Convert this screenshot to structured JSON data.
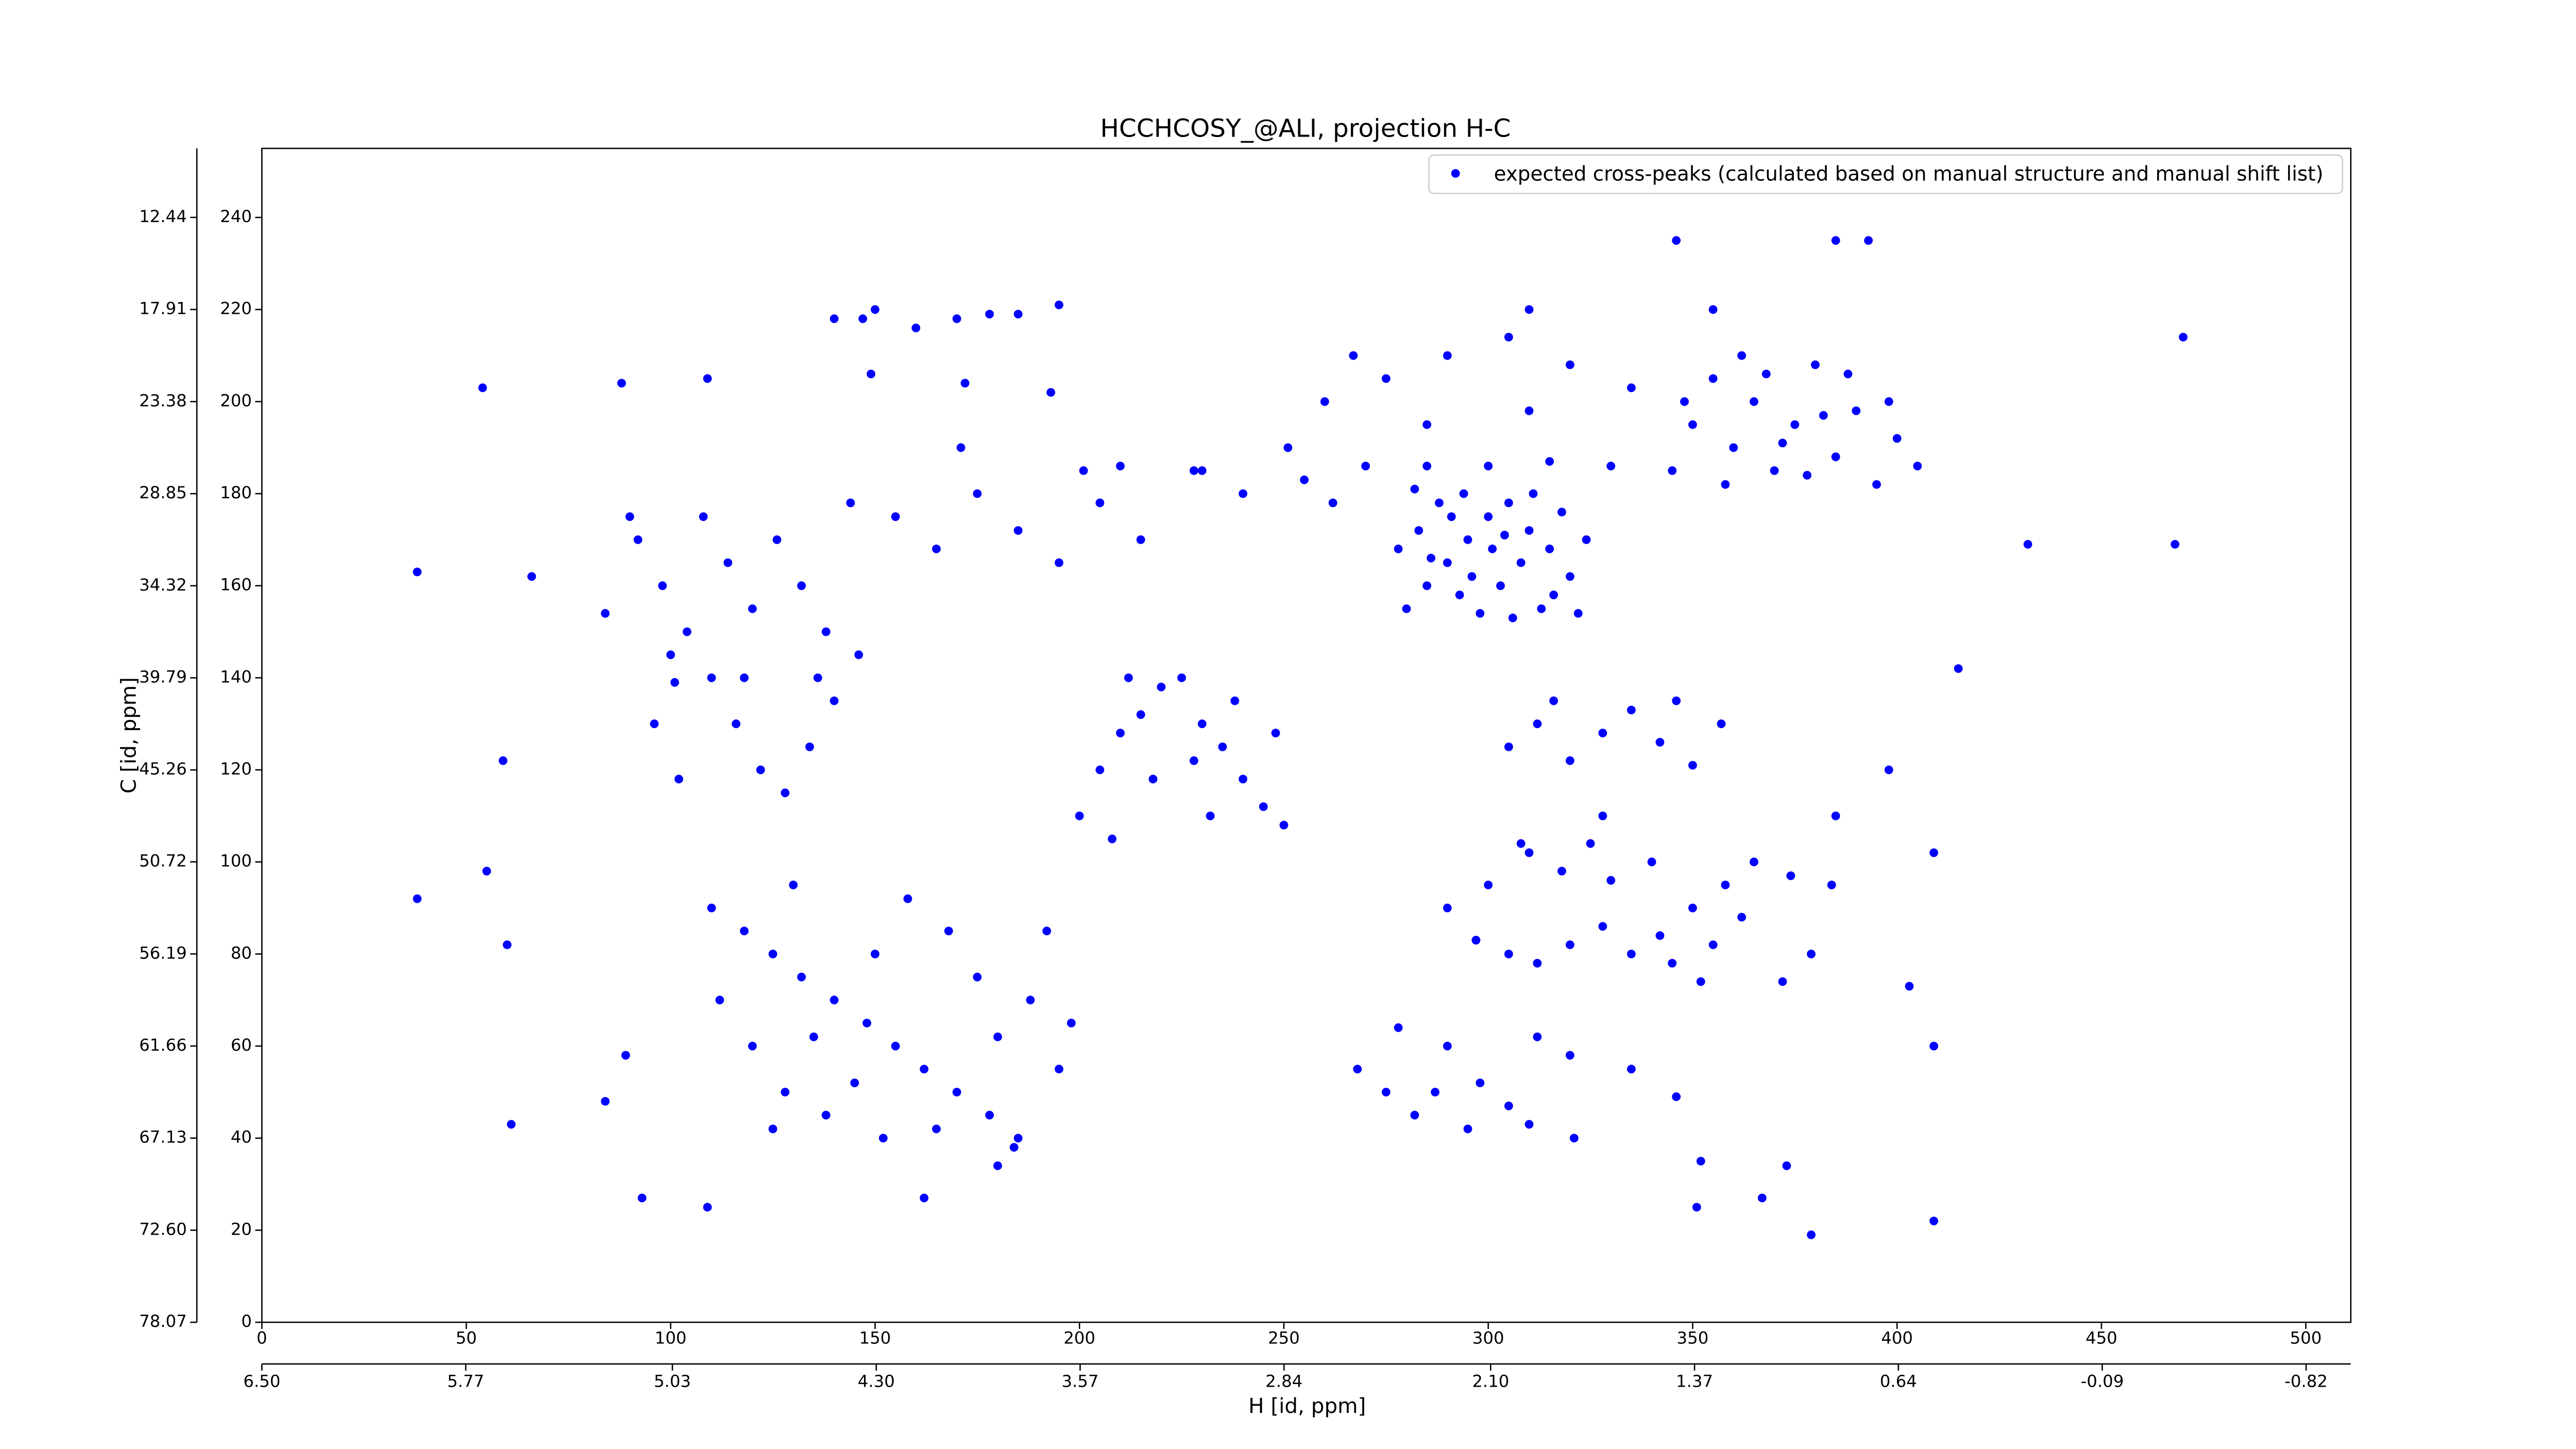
{
  "chart_data": {
    "type": "scatter",
    "title": "HCCHCOSY_@ALI, projection H-C",
    "x_label": "H [id, ppm]",
    "y_label": "C [id, ppm]",
    "xlim": [
      0,
      511
    ],
    "ylim": [
      0,
      255
    ],
    "xticks": [
      0,
      50,
      100,
      150,
      200,
      250,
      300,
      350,
      400,
      450,
      500
    ],
    "yticks": [
      0,
      20,
      40,
      60,
      80,
      100,
      120,
      140,
      160,
      180,
      200,
      220,
      240
    ],
    "x2lim": [
      6.5,
      -0.98
    ],
    "x2ticks": [
      {
        "value": 6.5,
        "label": "6.50"
      },
      5.77,
      5.03,
      {
        "value": 4.3,
        "label": "4.30"
      },
      3.57,
      2.84,
      {
        "value": 2.1,
        "label": "2.10"
      },
      1.37,
      0.64,
      -0.09,
      -0.82
    ],
    "y2lim": [
      78.07,
      8.34
    ],
    "y2ticks": [
      78.07,
      {
        "value": 72.6,
        "label": "72.60"
      },
      67.13,
      61.66,
      56.19,
      50.72,
      45.26,
      39.79,
      34.32,
      28.85,
      23.38,
      17.91,
      12.44
    ],
    "legend": "upper right",
    "series": [
      {
        "name": "expected cross-peaks (calculated based on manual structure and manual shift list)",
        "color": "#0000ff",
        "x": [
          280,
          285,
          290,
          295,
          300,
          305,
          310,
          315,
          320,
          283,
          288,
          293,
          298,
          303,
          308,
          313,
          318,
          286,
          296,
          306,
          311,
          291,
          301,
          316,
          282,
          324,
          322,
          278,
          294,
          304,
          345,
          350,
          355,
          360,
          365,
          370,
          375,
          380,
          385,
          390,
          395,
          400,
          405,
          348,
          358,
          368,
          378,
          388,
          398,
          362,
          372,
          382,
          230,
          240,
          255,
          270,
          285,
          300,
          315,
          330,
          262,
          210,
          297,
          305,
          312,
          320,
          328,
          335,
          342,
          350,
          358,
          365,
          300,
          310,
          318,
          330,
          340,
          345,
          355,
          362,
          325,
          290,
          110,
          118,
          125,
          132,
          140,
          148,
          155,
          162,
          170,
          178,
          185,
          195,
          120,
          128,
          138,
          150,
          158,
          168,
          175,
          188,
          198,
          112,
          130,
          145,
          165,
          180,
          192,
          135,
          152,
          125,
          92,
          98,
          104,
          110,
          116,
          122,
          128,
          134,
          140,
          146,
          96,
          102,
          108,
          114,
          120,
          126,
          132,
          138,
          144,
          118,
          100,
          136,
          200,
          205,
          210,
          215,
          220,
          225,
          230,
          235,
          240,
          245,
          250,
          208,
          218,
          228,
          238,
          248,
          212,
          232,
          305,
          312,
          320,
          328,
          335,
          342,
          350,
          357,
          316,
          346,
          268,
          275,
          282,
          290,
          298,
          305,
          312,
          320,
          278,
          295,
          310,
          287,
          140,
          150,
          160,
          170,
          185,
          195,
          260,
          275,
          290,
          305,
          320,
          335,
          285,
          310,
          155,
          165,
          175,
          185,
          195,
          205,
          215,
          54,
          88,
          38,
          66,
          59,
          55,
          38,
          60,
          61,
          84,
          90,
          101,
          89,
          84,
          93,
          109,
          109,
          147,
          178,
          149,
          172,
          193,
          162,
          184,
          180,
          171,
          201,
          228,
          251,
          267,
          310,
          346,
          385,
          393,
          355,
          470,
          468,
          432,
          415,
          385,
          398,
          379,
          372,
          409,
          403,
          379,
          367,
          351,
          352,
          346,
          409,
          373,
          352,
          384,
          409,
          335,
          321,
          297,
          328,
          308,
          374
        ],
        "values": [
          155,
          160,
          165,
          170,
          175,
          178,
          172,
          168,
          162,
          172,
          178,
          158,
          154,
          160,
          165,
          155,
          176,
          166,
          162,
          153,
          180,
          175,
          168,
          158,
          181,
          170,
          154,
          168,
          180,
          171,
          185,
          195,
          205,
          190,
          200,
          185,
          195,
          208,
          188,
          198,
          182,
          192,
          186,
          200,
          182,
          206,
          184,
          206,
          200,
          210,
          191,
          197,
          185,
          180,
          183,
          186,
          186,
          186,
          187,
          186,
          178,
          186,
          83,
          80,
          78,
          82,
          86,
          80,
          84,
          90,
          95,
          100,
          95,
          102,
          98,
          96,
          100,
          78,
          82,
          88,
          104,
          90,
          90,
          85,
          80,
          75,
          70,
          65,
          60,
          55,
          50,
          45,
          40,
          55,
          60,
          50,
          45,
          80,
          92,
          85,
          75,
          70,
          65,
          70,
          95,
          52,
          42,
          62,
          85,
          62,
          40,
          42,
          170,
          160,
          150,
          140,
          130,
          120,
          115,
          125,
          135,
          145,
          130,
          118,
          175,
          165,
          155,
          170,
          160,
          150,
          178,
          140,
          145,
          140,
          110,
          120,
          128,
          132,
          138,
          140,
          130,
          125,
          118,
          112,
          108,
          105,
          118,
          122,
          135,
          128,
          140,
          110,
          125,
          130,
          122,
          128,
          133,
          126,
          121,
          130,
          135,
          135,
          55,
          50,
          45,
          60,
          52,
          47,
          62,
          58,
          64,
          42,
          43,
          50,
          218,
          220,
          216,
          218,
          219,
          221,
          200,
          205,
          210,
          214,
          208,
          203,
          195,
          198,
          175,
          168,
          180,
          172,
          165,
          178,
          170,
          203,
          204,
          163,
          162,
          122,
          98,
          92,
          82,
          43,
          154,
          175,
          139,
          58,
          48,
          27,
          25,
          205,
          218,
          219,
          206,
          204,
          202,
          27,
          38,
          34,
          190,
          185,
          185,
          190,
          210,
          220,
          235,
          235,
          235,
          220,
          214,
          169,
          169,
          142,
          110,
          120,
          80,
          74,
          60,
          73,
          19,
          27,
          25,
          35,
          49,
          22,
          34,
          74,
          95,
          102,
          55,
          40,
          83,
          110,
          104,
          97
        ]
      }
    ]
  }
}
